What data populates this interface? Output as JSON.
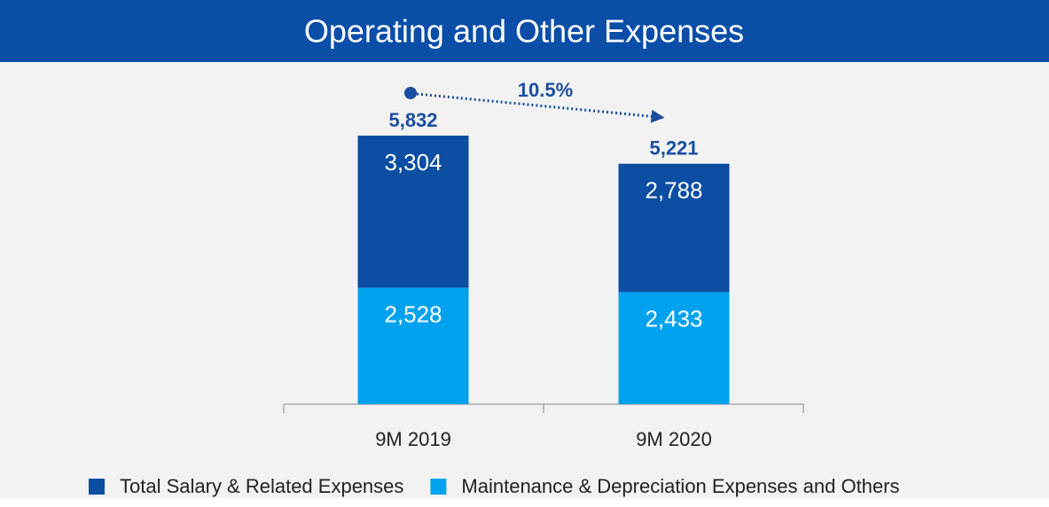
{
  "chart_data": {
    "type": "stacked_bar",
    "title": "Operating and Other Expenses",
    "categories": [
      "9M 2019",
      "9M 2020"
    ],
    "series": [
      {
        "name": "Total Salary & Related Expenses",
        "color": "#0b4ea2",
        "values": [
          3304,
          2788
        ],
        "value_labels": [
          "3,304",
          "2,788"
        ]
      },
      {
        "name": "Maintenance & Depreciation Expenses and Others",
        "color": "#00a2ef",
        "values": [
          2528,
          2433
        ],
        "value_labels": [
          "2,528",
          "2,433"
        ]
      }
    ],
    "totals": [
      5832,
      5221
    ],
    "total_labels": [
      "5,832",
      "5,221"
    ],
    "annotation": "10.5%"
  }
}
